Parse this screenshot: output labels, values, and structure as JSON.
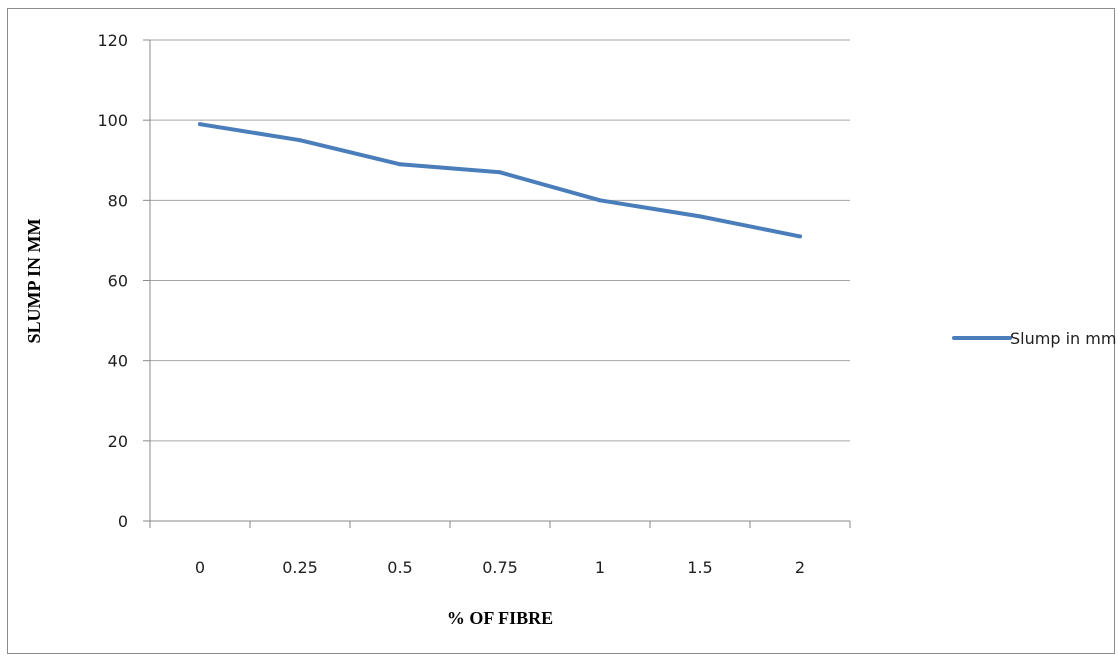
{
  "chart_data": {
    "type": "line",
    "categories": [
      "0",
      "0.25",
      "0.5",
      "0.75",
      "1",
      "1.5",
      "2"
    ],
    "series": [
      {
        "name": "Slump in mm",
        "values": [
          99,
          95,
          89,
          87,
          80,
          76,
          71
        ],
        "color": "#4a7ebb"
      }
    ],
    "xlabel": "% OF FIBRE",
    "ylabel": "SLUMP IN MM",
    "ylim": [
      0,
      120
    ],
    "yticks": [
      "0",
      "20",
      "40",
      "60",
      "80",
      "100",
      "120"
    ],
    "grid": "horizontal",
    "legend_position": "right"
  }
}
